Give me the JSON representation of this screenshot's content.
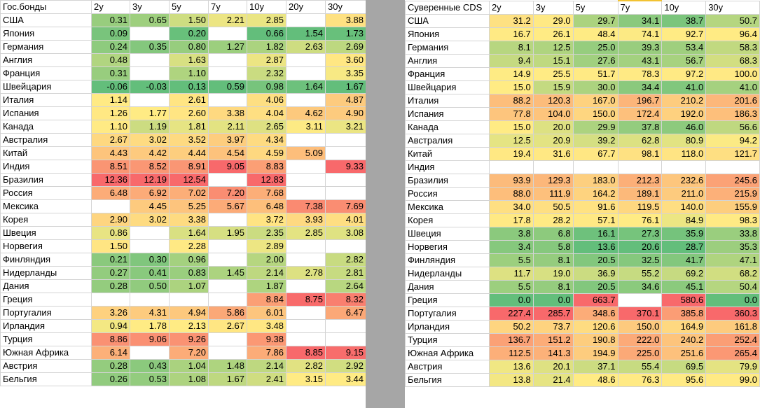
{
  "bonds": {
    "title": "Гос.бонды",
    "columns": [
      "2y",
      "3y",
      "5y",
      "7y",
      "10y",
      "20y",
      "30y"
    ],
    "rows": [
      {
        "name": "США",
        "values": [
          "0.31",
          "0.65",
          "1.50",
          "2.21",
          "2.85",
          "",
          "3.88"
        ]
      },
      {
        "name": "Япония",
        "values": [
          "0.09",
          "",
          "0.20",
          "",
          "0.66",
          "1.54",
          "1.73"
        ]
      },
      {
        "name": "Германия",
        "values": [
          "0.24",
          "0.35",
          "0.80",
          "1.27",
          "1.82",
          "2.63",
          "2.69"
        ]
      },
      {
        "name": "Англия",
        "values": [
          "0.48",
          "",
          "1.63",
          "",
          "2.87",
          "",
          "3.60"
        ]
      },
      {
        "name": "Франция",
        "values": [
          "0.31",
          "",
          "1.10",
          "",
          "2.32",
          "",
          "3.35"
        ]
      },
      {
        "name": "Швейцария",
        "values": [
          "-0.06",
          "-0.03",
          "0.13",
          "0.59",
          "0.98",
          "1.64",
          "1.67"
        ]
      },
      {
        "name": "Италия",
        "values": [
          "1.14",
          "",
          "2.61",
          "",
          "4.06",
          "",
          "4.87"
        ]
      },
      {
        "name": "Испания",
        "values": [
          "1.26",
          "1.77",
          "2.60",
          "3.38",
          "4.04",
          "4.62",
          "4.90"
        ]
      },
      {
        "name": "Канада",
        "values": [
          "1.10",
          "1.19",
          "1.81",
          "2.11",
          "2.65",
          "3.11",
          "3.21"
        ]
      },
      {
        "name": "Австралия",
        "values": [
          "2.67",
          "3.02",
          "3.52",
          "3.97",
          "4.34",
          "",
          ""
        ]
      },
      {
        "name": "Китай",
        "values": [
          "4.43",
          "4.42",
          "4.44",
          "4.54",
          "4.59",
          "5.09",
          ""
        ]
      },
      {
        "name": "Индия",
        "values": [
          "8.51",
          "8.52",
          "8.91",
          "9.05",
          "8.83",
          "",
          "9.33"
        ]
      },
      {
        "name": "Бразилия",
        "values": [
          "12.36",
          "12.19",
          "12.54",
          "",
          "12.83",
          "",
          ""
        ]
      },
      {
        "name": "Россия",
        "values": [
          "6.48",
          "6.92",
          "7.02",
          "7.20",
          "7.68",
          "",
          ""
        ]
      },
      {
        "name": "Мексика",
        "values": [
          "",
          "4.45",
          "5.25",
          "5.67",
          "6.48",
          "7.38",
          "7.69"
        ]
      },
      {
        "name": "Корея",
        "values": [
          "2.90",
          "3.02",
          "3.38",
          "",
          "3.72",
          "3.93",
          "4.01"
        ]
      },
      {
        "name": "Швеция",
        "values": [
          "0.86",
          "",
          "1.64",
          "1.95",
          "2.35",
          "2.85",
          "3.08"
        ]
      },
      {
        "name": "Норвегия",
        "values": [
          "1.50",
          "",
          "2.28",
          "",
          "2.89",
          "",
          ""
        ]
      },
      {
        "name": "Финляндия",
        "values": [
          "0.21",
          "0.30",
          "0.96",
          "",
          "2.00",
          "",
          "2.82"
        ]
      },
      {
        "name": "Нидерланды",
        "values": [
          "0.27",
          "0.41",
          "0.83",
          "1.45",
          "2.14",
          "2.78",
          "2.81"
        ]
      },
      {
        "name": "Дания",
        "values": [
          "0.28",
          "0.50",
          "1.07",
          "",
          "1.87",
          "",
          "2.64"
        ]
      },
      {
        "name": "Греция",
        "values": [
          "",
          "",
          "",
          "",
          "8.84",
          "8.75",
          "8.32"
        ]
      },
      {
        "name": "Португалия",
        "values": [
          "3.26",
          "4.31",
          "4.94",
          "5.86",
          "6.01",
          "",
          "6.47"
        ]
      },
      {
        "name": "Ирландия",
        "values": [
          "0.94",
          "1.78",
          "2.13",
          "2.67",
          "3.48",
          "",
          ""
        ]
      },
      {
        "name": "Турция",
        "values": [
          "8.86",
          "9.06",
          "9.26",
          "",
          "9.38",
          "",
          ""
        ]
      },
      {
        "name": "Южная Африка",
        "values": [
          "6.14",
          "",
          "7.20",
          "",
          "7.86",
          "8.85",
          "9.15"
        ]
      },
      {
        "name": "Австрия",
        "values": [
          "0.28",
          "0.43",
          "1.04",
          "1.48",
          "2.14",
          "2.82",
          "2.92"
        ]
      },
      {
        "name": "Бельгия",
        "values": [
          "0.26",
          "0.53",
          "1.08",
          "1.67",
          "2.41",
          "3.15",
          "3.44"
        ]
      }
    ]
  },
  "cds": {
    "title": "Суверенные CDS",
    "columns": [
      "2y",
      "3y",
      "5y",
      "7y",
      "10y",
      "30y"
    ],
    "rows": [
      {
        "name": "США",
        "values": [
          "31.2",
          "29.0",
          "29.7",
          "34.1",
          "38.7",
          "50.7"
        ]
      },
      {
        "name": "Япония",
        "values": [
          "16.7",
          "26.1",
          "48.4",
          "74.1",
          "92.7",
          "96.4"
        ]
      },
      {
        "name": "Германия",
        "values": [
          "8.1",
          "12.5",
          "25.0",
          "39.3",
          "53.4",
          "58.3"
        ]
      },
      {
        "name": "Англия",
        "values": [
          "9.4",
          "15.1",
          "27.6",
          "43.1",
          "56.7",
          "68.3"
        ]
      },
      {
        "name": "Франция",
        "values": [
          "14.9",
          "25.5",
          "51.7",
          "78.3",
          "97.2",
          "100.0"
        ]
      },
      {
        "name": "Швейцария",
        "values": [
          "15.0",
          "15.9",
          "30.0",
          "34.4",
          "41.0",
          "41.0"
        ]
      },
      {
        "name": "Италия",
        "values": [
          "88.2",
          "120.3",
          "167.0",
          "196.7",
          "210.2",
          "201.6"
        ]
      },
      {
        "name": "Испания",
        "values": [
          "77.8",
          "104.0",
          "150.0",
          "172.4",
          "192.0",
          "186.3"
        ]
      },
      {
        "name": "Канада",
        "values": [
          "15.0",
          "20.0",
          "29.9",
          "37.8",
          "46.0",
          "56.6"
        ]
      },
      {
        "name": "Австралия",
        "values": [
          "12.5",
          "20.9",
          "39.2",
          "62.8",
          "80.9",
          "94.2"
        ]
      },
      {
        "name": "Китай",
        "values": [
          "19.4",
          "31.6",
          "67.7",
          "98.1",
          "118.0",
          "121.7"
        ]
      },
      {
        "name": "Индия",
        "values": [
          "",
          "",
          "",
          "",
          "",
          ""
        ]
      },
      {
        "name": "Бразилия",
        "values": [
          "93.9",
          "129.3",
          "183.0",
          "212.3",
          "232.6",
          "245.6"
        ]
      },
      {
        "name": "Россия",
        "values": [
          "88.0",
          "111.9",
          "164.2",
          "189.1",
          "211.0",
          "215.9"
        ]
      },
      {
        "name": "Мексика",
        "values": [
          "34.0",
          "50.5",
          "91.6",
          "119.5",
          "140.0",
          "155.9"
        ]
      },
      {
        "name": "Корея",
        "values": [
          "17.8",
          "28.2",
          "57.1",
          "76.1",
          "84.9",
          "98.3"
        ]
      },
      {
        "name": "Швеция",
        "values": [
          "3.8",
          "6.8",
          "16.1",
          "27.3",
          "35.9",
          "33.8"
        ]
      },
      {
        "name": "Норвегия",
        "values": [
          "3.4",
          "5.8",
          "13.6",
          "20.6",
          "28.7",
          "35.3"
        ]
      },
      {
        "name": "Финляндия",
        "values": [
          "5.5",
          "8.1",
          "20.5",
          "32.5",
          "41.7",
          "47.1"
        ]
      },
      {
        "name": "Нидерланды",
        "values": [
          "11.7",
          "19.0",
          "36.9",
          "55.2",
          "69.2",
          "68.2"
        ]
      },
      {
        "name": "Дания",
        "values": [
          "5.5",
          "8.1",
          "20.5",
          "34.6",
          "45.1",
          "50.4"
        ]
      },
      {
        "name": "Греция",
        "values": [
          "0.0",
          "0.0",
          "663.7",
          "",
          "580.6",
          "0.0"
        ]
      },
      {
        "name": "Португалия",
        "values": [
          "227.4",
          "285.7",
          "348.6",
          "370.1",
          "385.8",
          "360.3"
        ]
      },
      {
        "name": "Ирландия",
        "values": [
          "50.2",
          "73.7",
          "120.6",
          "150.0",
          "164.9",
          "161.8"
        ]
      },
      {
        "name": "Турция",
        "values": [
          "136.7",
          "151.2",
          "190.8",
          "222.0",
          "240.2",
          "252.4"
        ]
      },
      {
        "name": "Южная Африка",
        "values": [
          "112.5",
          "141.3",
          "194.9",
          "225.0",
          "251.6",
          "265.4"
        ]
      },
      {
        "name": "Австрия",
        "values": [
          "13.6",
          "20.1",
          "37.1",
          "55.4",
          "69.5",
          "79.9"
        ]
      },
      {
        "name": "Бельгия",
        "values": [
          "13.8",
          "21.4",
          "48.6",
          "76.3",
          "95.6",
          "99.0"
        ]
      }
    ]
  },
  "colors": {
    "green": "#63be7b",
    "yellow": "#ffeb84",
    "red": "#f8696b",
    "separator": "#a6a6a6"
  }
}
